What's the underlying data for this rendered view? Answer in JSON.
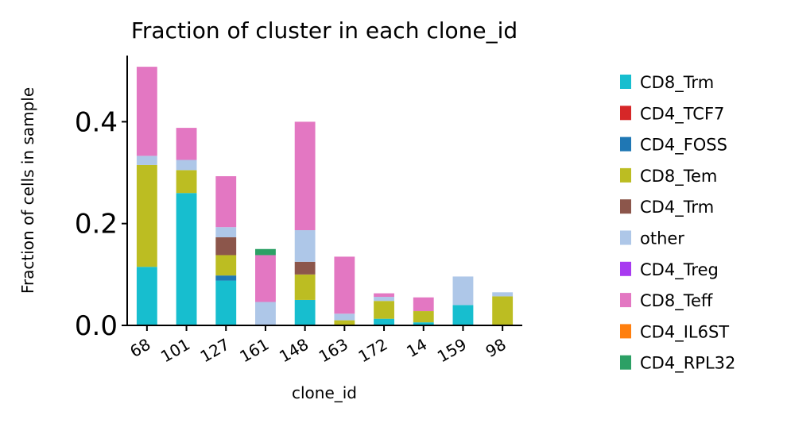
{
  "chart_data": {
    "type": "bar",
    "stacked": true,
    "title": "Fraction of cluster in each clone_id",
    "xlabel": "clone_id",
    "ylabel": "Fraction of cells in sample",
    "ylim": [
      0,
      0.53
    ],
    "yticks": [
      0.0,
      0.2,
      0.4
    ],
    "ytick_labels": [
      "0.0",
      "0.2",
      "0.4"
    ],
    "grid": false,
    "legend_position": "right",
    "categories": [
      "68",
      "101",
      "127",
      "161",
      "148",
      "163",
      "172",
      "14",
      "159",
      "98"
    ],
    "series": [
      {
        "name": "CD8_Trm",
        "color": "#17becf",
        "values": [
          0.115,
          0.26,
          0.088,
          0.0,
          0.05,
          0.0,
          0.013,
          0.006,
          0.04,
          0.0
        ]
      },
      {
        "name": "CD4_TCF7",
        "color": "#d62728",
        "values": [
          0,
          0,
          0,
          0,
          0,
          0,
          0,
          0,
          0,
          0
        ]
      },
      {
        "name": "CD4_FOSS",
        "color": "#1f77b4",
        "values": [
          0,
          0,
          0.01,
          0,
          0,
          0,
          0,
          0,
          0,
          0
        ]
      },
      {
        "name": "CD8_Tem",
        "color": "#bcbd22",
        "values": [
          0.2,
          0.045,
          0.04,
          0.0,
          0.05,
          0.01,
          0.035,
          0.022,
          0.0,
          0.057
        ]
      },
      {
        "name": "CD4_Trm",
        "color": "#8c564b",
        "values": [
          0,
          0,
          0.035,
          0,
          0.025,
          0,
          0,
          0,
          0,
          0
        ]
      },
      {
        "name": "other",
        "color": "#aec7e8",
        "values": [
          0.018,
          0.02,
          0.02,
          0.046,
          0.062,
          0.013,
          0.008,
          0.0,
          0.056,
          0.008
        ]
      },
      {
        "name": "CD4_Treg",
        "color": "#a83af0",
        "values": [
          0,
          0,
          0,
          0,
          0,
          0,
          0,
          0,
          0,
          0
        ]
      },
      {
        "name": "CD8_Teff",
        "color": "#e377c2",
        "values": [
          0.175,
          0.063,
          0.1,
          0.092,
          0.213,
          0.112,
          0.007,
          0.027,
          0.0,
          0.0
        ]
      },
      {
        "name": "CD4_IL6ST",
        "color": "#ff7f0e",
        "values": [
          0,
          0,
          0,
          0,
          0,
          0,
          0,
          0,
          0,
          0
        ]
      },
      {
        "name": "CD4_RPL32",
        "color": "#2ca065",
        "values": [
          0,
          0,
          0,
          0.012,
          0,
          0,
          0,
          0,
          0,
          0
        ]
      }
    ]
  }
}
